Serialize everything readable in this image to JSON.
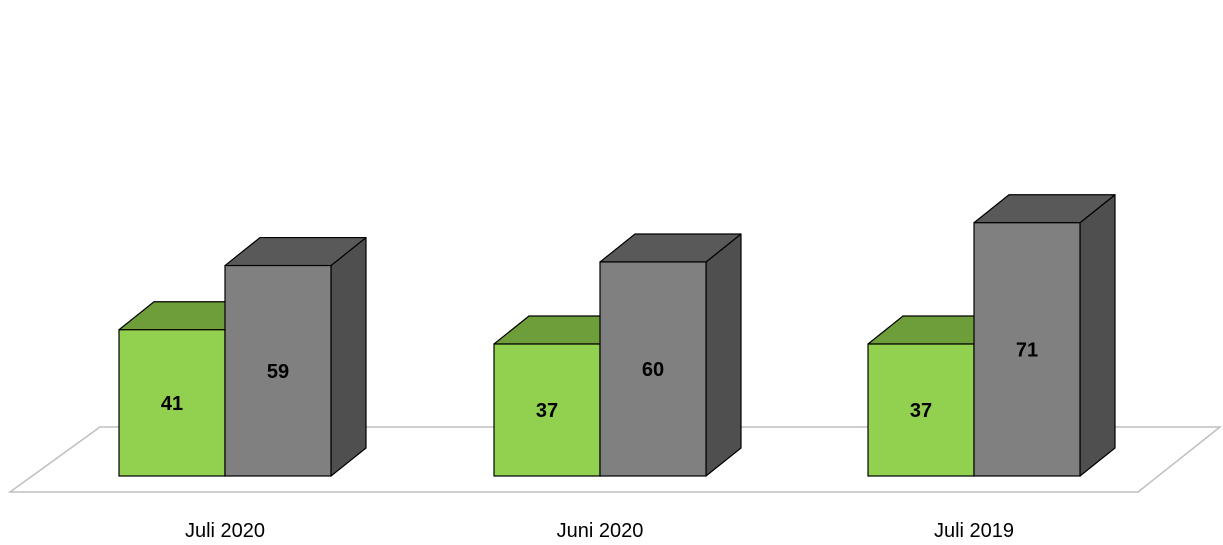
{
  "chart_data": {
    "type": "bar",
    "three_d": true,
    "categories": [
      "Juli 2020",
      "Juni 2020",
      "Juli 2019"
    ],
    "series": [
      {
        "values": [
          41,
          37,
          37
        ],
        "color": "#92d050",
        "top_color": "#6e9e3a",
        "side_color": "#6e9e3a"
      },
      {
        "values": [
          59,
          60,
          71
        ],
        "color": "#808080",
        "top_color": "#595959",
        "side_color": "#4f4f4f"
      }
    ],
    "data_labels": true,
    "legend": "none",
    "grid": false,
    "floor_color": "#bfbfbf"
  }
}
